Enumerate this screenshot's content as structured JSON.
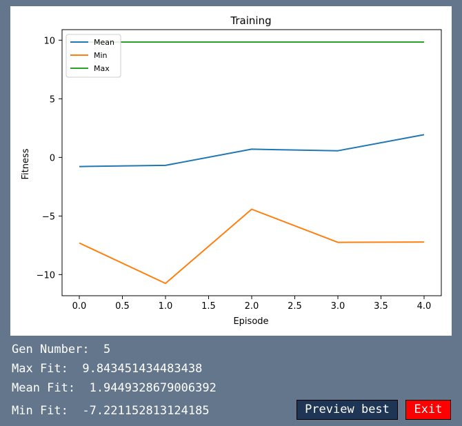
{
  "chart_data": {
    "type": "line",
    "title": "Training",
    "xlabel": "Episode",
    "ylabel": "Fitness",
    "x": [
      0.0,
      1.0,
      2.0,
      3.0,
      4.0
    ],
    "xlim": [
      -0.2,
      4.2
    ],
    "ylim": [
      -11.8,
      10.9
    ],
    "xticks": [
      0.0,
      0.5,
      1.0,
      1.5,
      2.0,
      2.5,
      3.0,
      3.5,
      4.0
    ],
    "xtick_labels": [
      "0.0",
      "0.5",
      "1.0",
      "1.5",
      "2.0",
      "2.5",
      "3.0",
      "3.5",
      "4.0"
    ],
    "yticks": [
      10,
      5,
      0,
      -5,
      -10
    ],
    "ytick_labels": [
      "10",
      "5",
      "0",
      "−5",
      "−10"
    ],
    "grid": false,
    "legend_position": "top-left",
    "series": [
      {
        "name": "Mean",
        "color": "#1f77b4",
        "values": [
          -0.78,
          -0.68,
          0.7,
          0.57,
          1.94
        ]
      },
      {
        "name": "Min",
        "color": "#ff7f0e",
        "values": [
          -7.3,
          -10.75,
          -4.42,
          -7.25,
          -7.22
        ]
      },
      {
        "name": "Max",
        "color": "#2ca02c",
        "values": [
          9.84,
          9.84,
          9.84,
          9.84,
          9.84
        ]
      }
    ]
  },
  "stats": {
    "gen": "Gen Number:  5",
    "max": "Max Fit:  9.843451434483438",
    "mean": "Mean Fit:  1.9449328679006392",
    "min": "Min Fit:  -7.221152813124185"
  },
  "buttons": {
    "preview": "Preview best",
    "exit": "Exit"
  }
}
